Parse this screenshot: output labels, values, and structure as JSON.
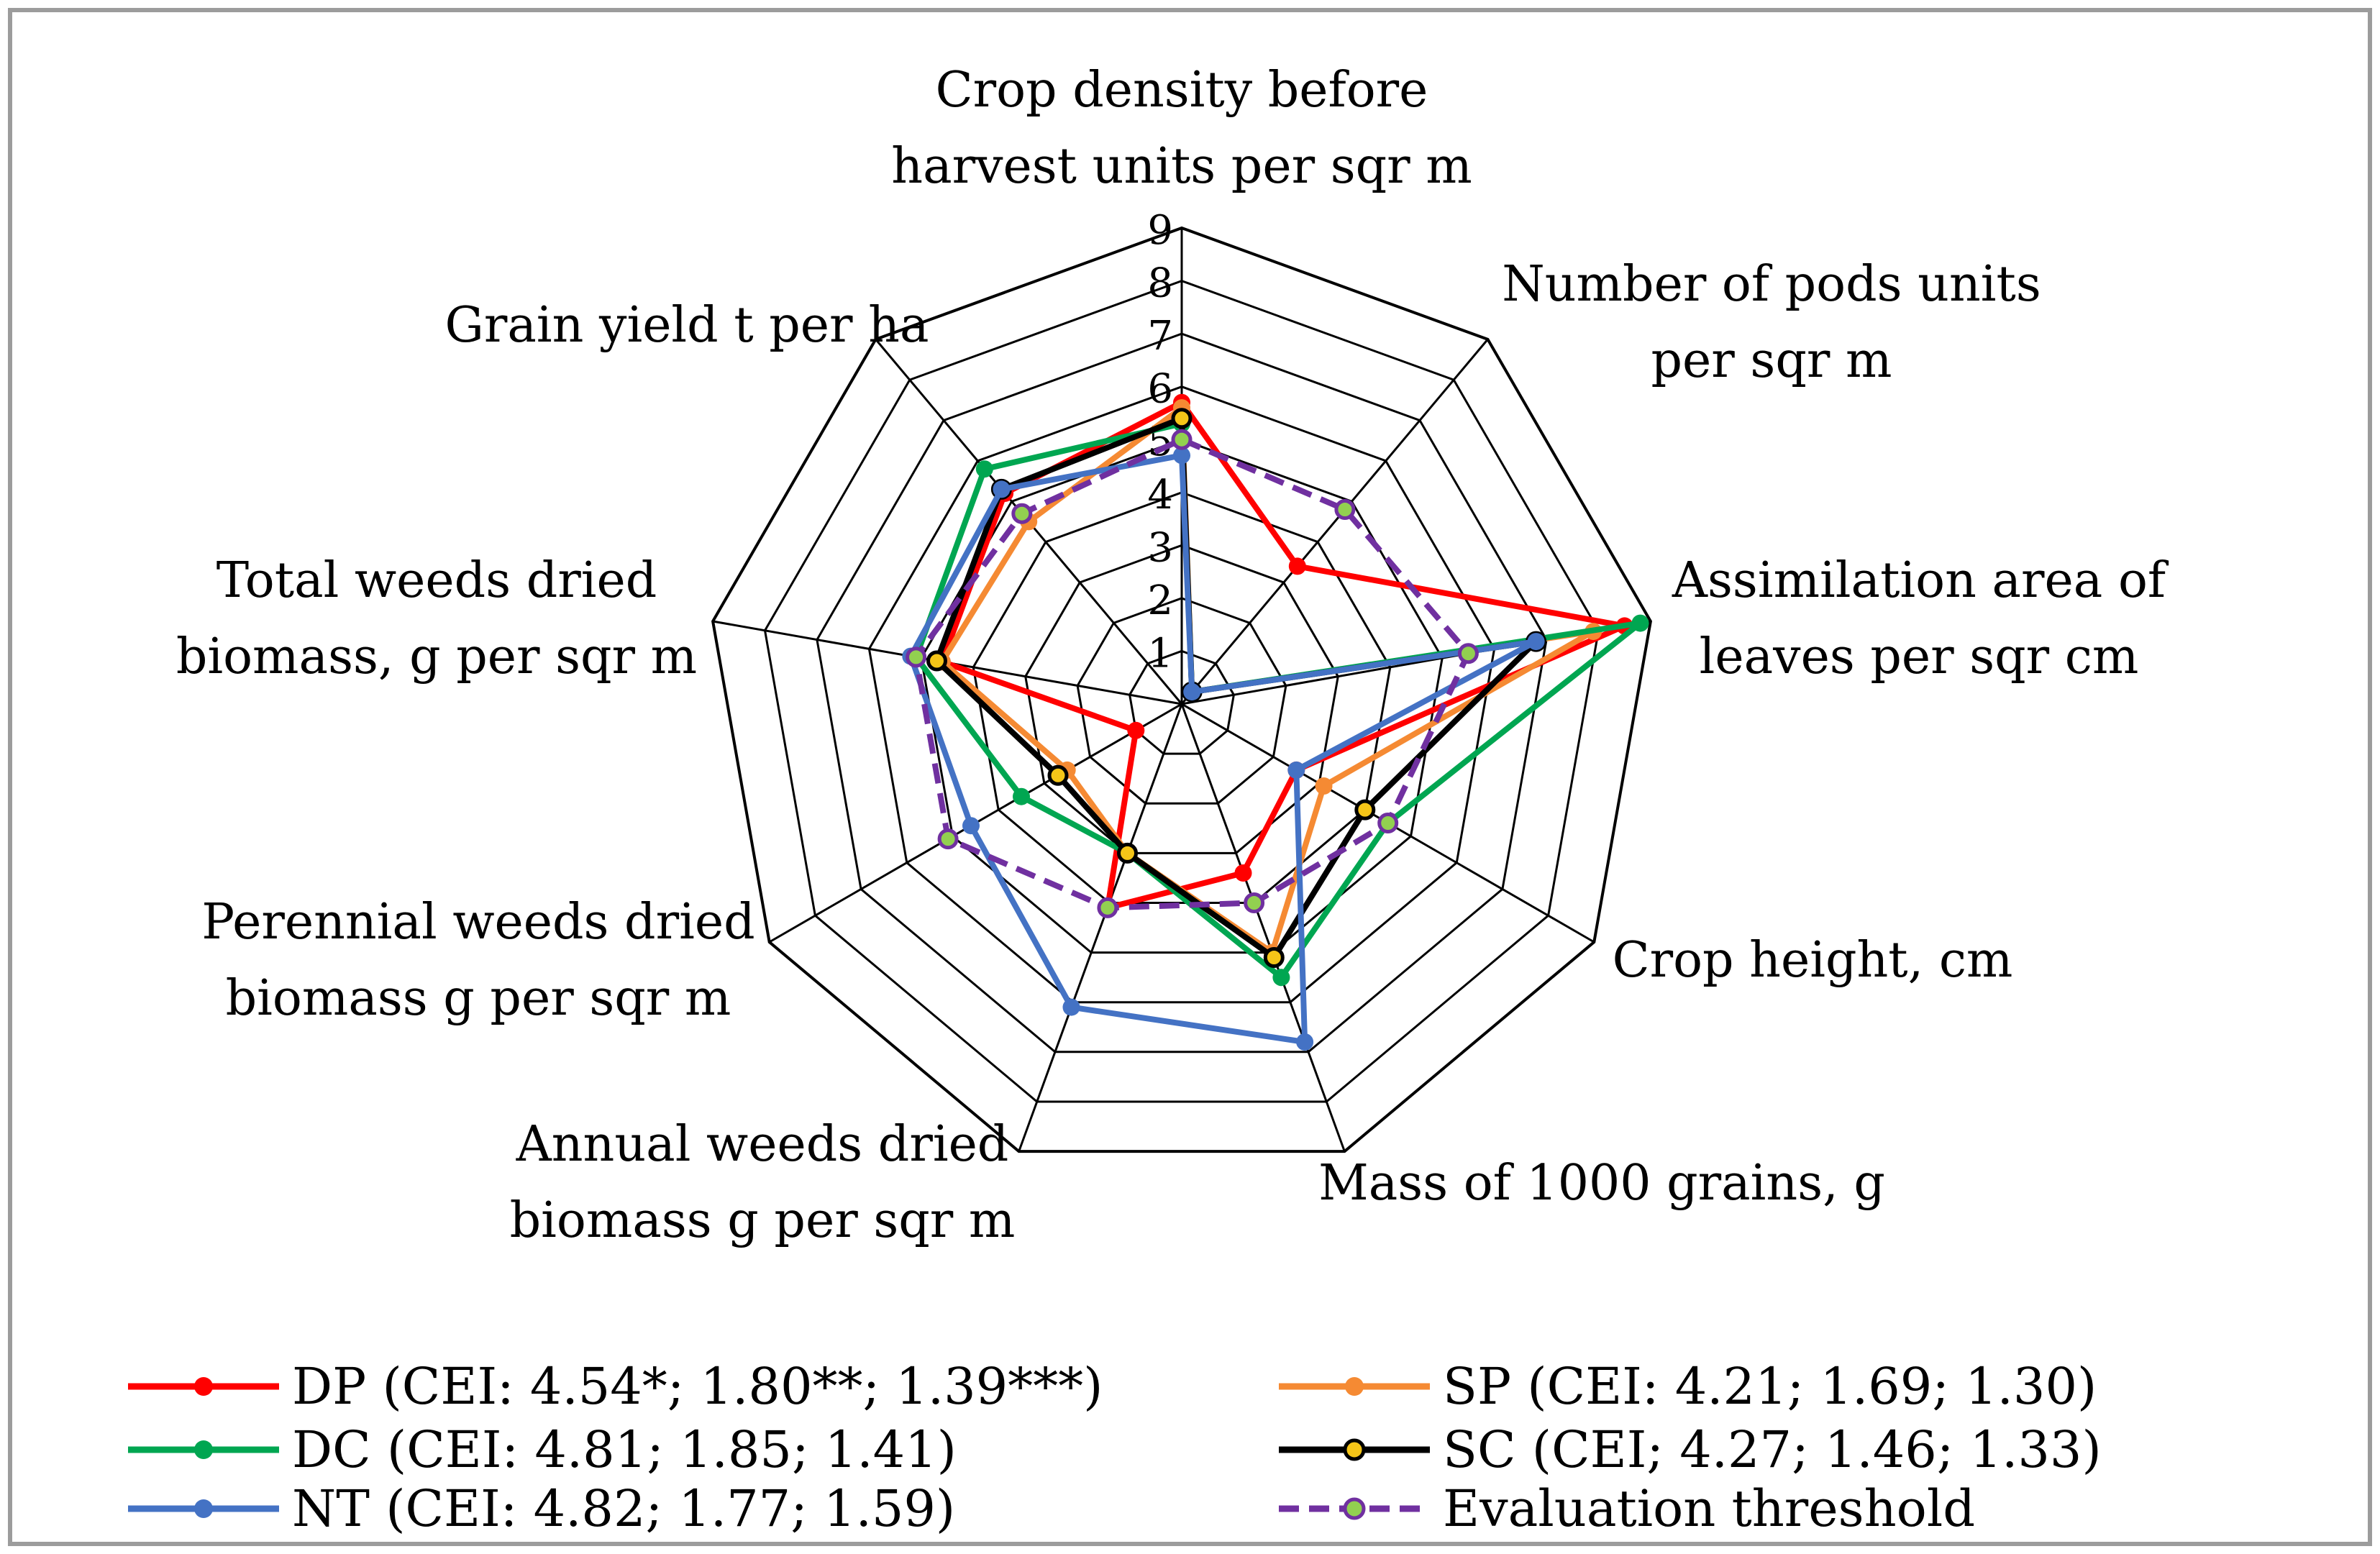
{
  "chart_data": {
    "type": "radar",
    "title": "",
    "rmax": 9,
    "ticks": [
      "1",
      "2",
      "3",
      "4",
      "5",
      "6",
      "7",
      "8",
      "9"
    ],
    "axes": [
      [
        "Crop density before",
        "harvest units per sqr m"
      ],
      [
        "Number of pods units",
        "per sqr m"
      ],
      [
        "Assimilation area of",
        "leaves per sqr cm"
      ],
      [
        "Crop height, cm"
      ],
      [
        "Mass of 1000 grains, g"
      ],
      [
        "Annual weeds dried",
        "biomass g per sqr m"
      ],
      [
        "Perennial weeds dried",
        "biomass g per sqr m"
      ],
      [
        "Total weeds dried",
        "biomass, g per sqr m"
      ],
      [
        "Grain yield t per ha"
      ]
    ],
    "series": [
      {
        "name": "DP",
        "label": "DP (CEI: 4.54*; 1.80**; 1.39***)",
        "color": "#ff0000",
        "marker_fill": "#ff0000",
        "dashed": false,
        "values": [
          5.7,
          3.4,
          8.5,
          2.5,
          3.4,
          4.1,
          1.0,
          4.6,
          5.2
        ]
      },
      {
        "name": "SP",
        "label": "SP (CEI: 4.21; 1.69; 1.30)",
        "color": "#f58a33",
        "marker_fill": "#f58a33",
        "dashed": false,
        "values": [
          5.6,
          0.3,
          7.9,
          3.1,
          5.0,
          3.0,
          2.5,
          4.6,
          4.5
        ]
      },
      {
        "name": "DC",
        "label": "DC (CEI: 4.81; 1.85; 1.41)",
        "color": "#00a651",
        "marker_fill": "#00a651",
        "dashed": false,
        "values": [
          5.3,
          0.3,
          8.8,
          4.5,
          5.5,
          3.0,
          3.5,
          5.1,
          5.8
        ]
      },
      {
        "name": "SC",
        "label": "SC (CEI; 4.27; 1.46; 1.33)",
        "color": "#000000",
        "marker_fill": "#f5c518",
        "dashed": false,
        "values": [
          5.4,
          0.3,
          6.8,
          4.0,
          5.1,
          3.0,
          2.7,
          4.7,
          5.3
        ]
      },
      {
        "name": "NT",
        "label": "NT (CEI: 4.82; 1.77; 1.59)",
        "color": "#4472c4",
        "marker_fill": "#4472c4",
        "dashed": false,
        "values": [
          4.7,
          0.3,
          6.8,
          2.5,
          6.8,
          6.1,
          4.6,
          5.2,
          5.3
        ]
      },
      {
        "name": "Evaluation threshold",
        "label": "Evaluation threshold",
        "color": "#7030a0",
        "marker_fill": "#92d050",
        "dashed": true,
        "values": [
          5.0,
          4.8,
          5.5,
          4.5,
          4.0,
          4.1,
          5.1,
          5.1,
          4.7
        ]
      }
    ]
  }
}
